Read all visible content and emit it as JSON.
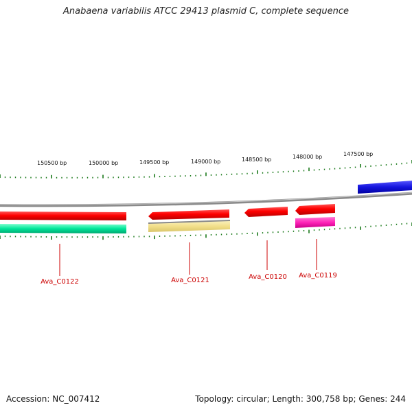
{
  "title": "Anabaena variabilis ATCC 29413 plasmid C, complete sequence",
  "footer": {
    "accession": "Accession: NC_007412",
    "summary": "Topology: circular; Length: 300,758 bp; Genes: 244"
  },
  "scale_labels": [
    "150500 bp",
    "150000 bp",
    "149500 bp",
    "149000 bp",
    "148500 bp",
    "148000 bp",
    "147500 bp"
  ],
  "genes": [
    {
      "name": "Ava_C0122",
      "color": "#ff0000"
    },
    {
      "name": "Ava_C0121",
      "color": "#ff0000"
    },
    {
      "name": "Ava_C0120",
      "color": "#ff0000"
    },
    {
      "name": "Ava_C0119",
      "color": "#ff0000"
    }
  ],
  "features": [
    {
      "color": "#00e69a"
    },
    {
      "color": "#f2df8a"
    },
    {
      "color": "#ff22b8"
    },
    {
      "color": "#1414dd"
    }
  ],
  "colors": {
    "backbone": "#8a8a8a",
    "ticks": "#1a7a1a",
    "gene_label": "#cc0000"
  }
}
